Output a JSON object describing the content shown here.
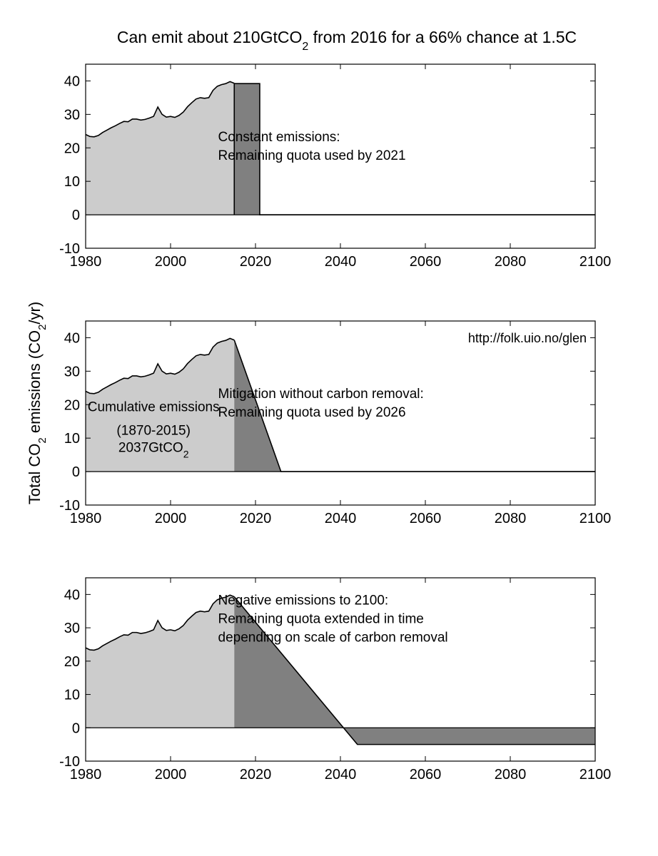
{
  "title": {
    "pre": "Can emit about 210GtCO",
    "sub": "2",
    "post": " from 2016 for a 66% chance at 1.5C"
  },
  "ylabel": {
    "pre": "Total CO",
    "sub1": "2",
    "mid": " emissions (CO",
    "sub2": "2",
    "post": "/yr)"
  },
  "watermark": "http://folk.uio.no/glen",
  "colors": {
    "historical": "#cccccc",
    "remaining": "#808080",
    "line": "#000000",
    "background": "#ffffff"
  },
  "chart_data": [
    {
      "type": "area",
      "xlim": [
        1980,
        2100
      ],
      "ylim": [
        -10,
        45
      ],
      "xticks": [
        1980,
        2000,
        2020,
        2040,
        2060,
        2080,
        2100
      ],
      "yticks": [
        -10,
        0,
        10,
        20,
        30,
        40
      ],
      "grid": false,
      "historical": {
        "x": [
          1980,
          1981,
          1982,
          1983,
          1984,
          1985,
          1986,
          1987,
          1988,
          1989,
          1990,
          1991,
          1992,
          1993,
          1994,
          1995,
          1996,
          1997,
          1998,
          1999,
          2000,
          2001,
          2002,
          2003,
          2004,
          2005,
          2006,
          2007,
          2008,
          2009,
          2010,
          2011,
          2012,
          2013,
          2014,
          2015
        ],
        "y": [
          24,
          23.4,
          23.3,
          23.7,
          24.6,
          25.3,
          26,
          26.6,
          27.3,
          27.9,
          27.8,
          28.6,
          28.6,
          28.3,
          28.5,
          28.9,
          29.4,
          32.2,
          30,
          29.2,
          29.4,
          29.1,
          29.7,
          30.7,
          32.3,
          33.5,
          34.6,
          35,
          34.8,
          35,
          37.2,
          38.4,
          38.9,
          39.2,
          39.8,
          39.3
        ]
      },
      "scenario": {
        "x": [
          2015,
          2015,
          2021,
          2021,
          2100
        ],
        "y": [
          0,
          39.2,
          39.2,
          0,
          0
        ]
      },
      "annotation": [
        "Constant emissions:",
        "Remaining quota used by 2021"
      ]
    },
    {
      "type": "area",
      "xlim": [
        1980,
        2100
      ],
      "ylim": [
        -10,
        45
      ],
      "xticks": [
        1980,
        2000,
        2020,
        2040,
        2060,
        2080,
        2100
      ],
      "yticks": [
        -10,
        0,
        10,
        20,
        30,
        40
      ],
      "grid": false,
      "historical": {
        "x": [
          1980,
          1981,
          1982,
          1983,
          1984,
          1985,
          1986,
          1987,
          1988,
          1989,
          1990,
          1991,
          1992,
          1993,
          1994,
          1995,
          1996,
          1997,
          1998,
          1999,
          2000,
          2001,
          2002,
          2003,
          2004,
          2005,
          2006,
          2007,
          2008,
          2009,
          2010,
          2011,
          2012,
          2013,
          2014,
          2015
        ],
        "y": [
          24,
          23.4,
          23.3,
          23.7,
          24.6,
          25.3,
          26,
          26.6,
          27.3,
          27.9,
          27.8,
          28.6,
          28.6,
          28.3,
          28.5,
          28.9,
          29.4,
          32.2,
          30,
          29.2,
          29.4,
          29.1,
          29.7,
          30.7,
          32.3,
          33.5,
          34.6,
          35,
          34.8,
          35,
          37.2,
          38.4,
          38.9,
          39.2,
          39.8,
          39.3
        ]
      },
      "scenario": {
        "x": [
          2015,
          2026,
          2100
        ],
        "y": [
          39.3,
          0,
          0
        ]
      },
      "annotation": [
        "Mitigation without carbon removal:",
        "Remaining quota used by 2026"
      ],
      "cumulative_label": [
        "Cumulative emissions",
        "(1870-2015)"
      ],
      "cumulative_value": {
        "main": "2037GtCO",
        "sub": "2"
      }
    },
    {
      "type": "area",
      "xlim": [
        1980,
        2100
      ],
      "ylim": [
        -10,
        45
      ],
      "xticks": [
        1980,
        2000,
        2020,
        2040,
        2060,
        2080,
        2100
      ],
      "yticks": [
        -10,
        0,
        10,
        20,
        30,
        40
      ],
      "grid": false,
      "historical": {
        "x": [
          1980,
          1981,
          1982,
          1983,
          1984,
          1985,
          1986,
          1987,
          1988,
          1989,
          1990,
          1991,
          1992,
          1993,
          1994,
          1995,
          1996,
          1997,
          1998,
          1999,
          2000,
          2001,
          2002,
          2003,
          2004,
          2005,
          2006,
          2007,
          2008,
          2009,
          2010,
          2011,
          2012,
          2013,
          2014,
          2015
        ],
        "y": [
          24,
          23.4,
          23.3,
          23.7,
          24.6,
          25.3,
          26,
          26.6,
          27.3,
          27.9,
          27.8,
          28.6,
          28.6,
          28.3,
          28.5,
          28.9,
          29.4,
          32.2,
          30,
          29.2,
          29.4,
          29.1,
          29.7,
          30.7,
          32.3,
          33.5,
          34.6,
          35,
          34.8,
          35,
          37.2,
          38.4,
          38.9,
          39.2,
          39.8,
          39.3
        ]
      },
      "scenario": {
        "x": [
          2015,
          2044,
          2100
        ],
        "y": [
          39.3,
          -5,
          -5
        ]
      },
      "annotation": [
        "Negative emissions to 2100:",
        "Remaining quota extended in time",
        "depending on scale of carbon removal"
      ]
    }
  ]
}
